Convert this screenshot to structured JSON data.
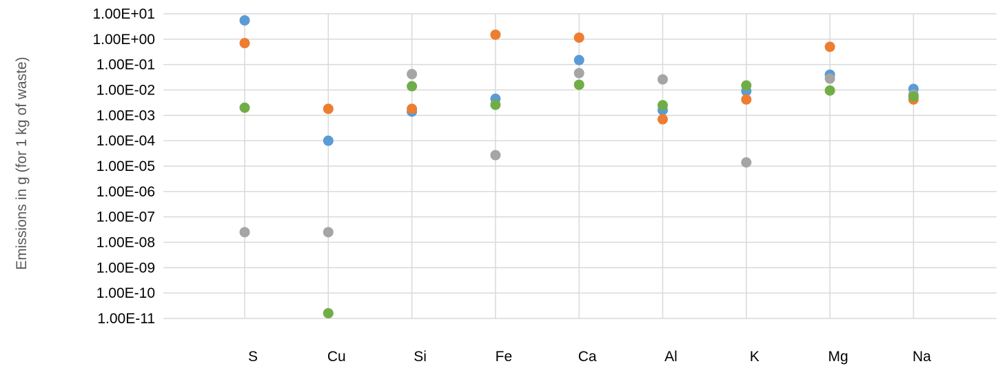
{
  "chart_data": {
    "type": "scatter",
    "title": "",
    "xlabel": "",
    "ylabel": "Emissions in g (for 1 kg of waste)",
    "yscale": "log",
    "ylim": [
      1e-11,
      10
    ],
    "y_tick_labels": [
      "1.00E-11",
      "1.00E-10",
      "1.00E-09",
      "1.00E-08",
      "1.00E-07",
      "1.00E-06",
      "1.00E-05",
      "1.00E-04",
      "1.00E-03",
      "1.00E-02",
      "1.00E-01",
      "1.00E+00",
      "1.00E+01"
    ],
    "categories": [
      "S",
      "Cu",
      "Si",
      "Fe",
      "Ca",
      "Al",
      "K",
      "Mg",
      "Na"
    ],
    "grid": {
      "horizontal": true,
      "vertical": true
    },
    "legend": "none",
    "series": [
      {
        "color": "#5b9bd5",
        "values": [
          5.5,
          0.0001,
          0.0014,
          0.0045,
          0.15,
          0.0016,
          0.009,
          0.04,
          0.011
        ]
      },
      {
        "color": "#ed7d31",
        "values": [
          0.7,
          0.0018,
          0.0018,
          1.5,
          1.15,
          0.0007,
          0.0042,
          0.5,
          0.0042
        ]
      },
      {
        "color": "#a5a5a5",
        "values": [
          2.5e-08,
          2.5e-08,
          0.042,
          2.7e-05,
          0.046,
          0.026,
          1.4e-05,
          0.028,
          0.0065
        ]
      },
      {
        "color": "#70ad47",
        "values": [
          0.002,
          1.6e-11,
          0.014,
          0.0026,
          0.016,
          0.0025,
          0.015,
          0.0095,
          0.0055
        ]
      }
    ]
  }
}
